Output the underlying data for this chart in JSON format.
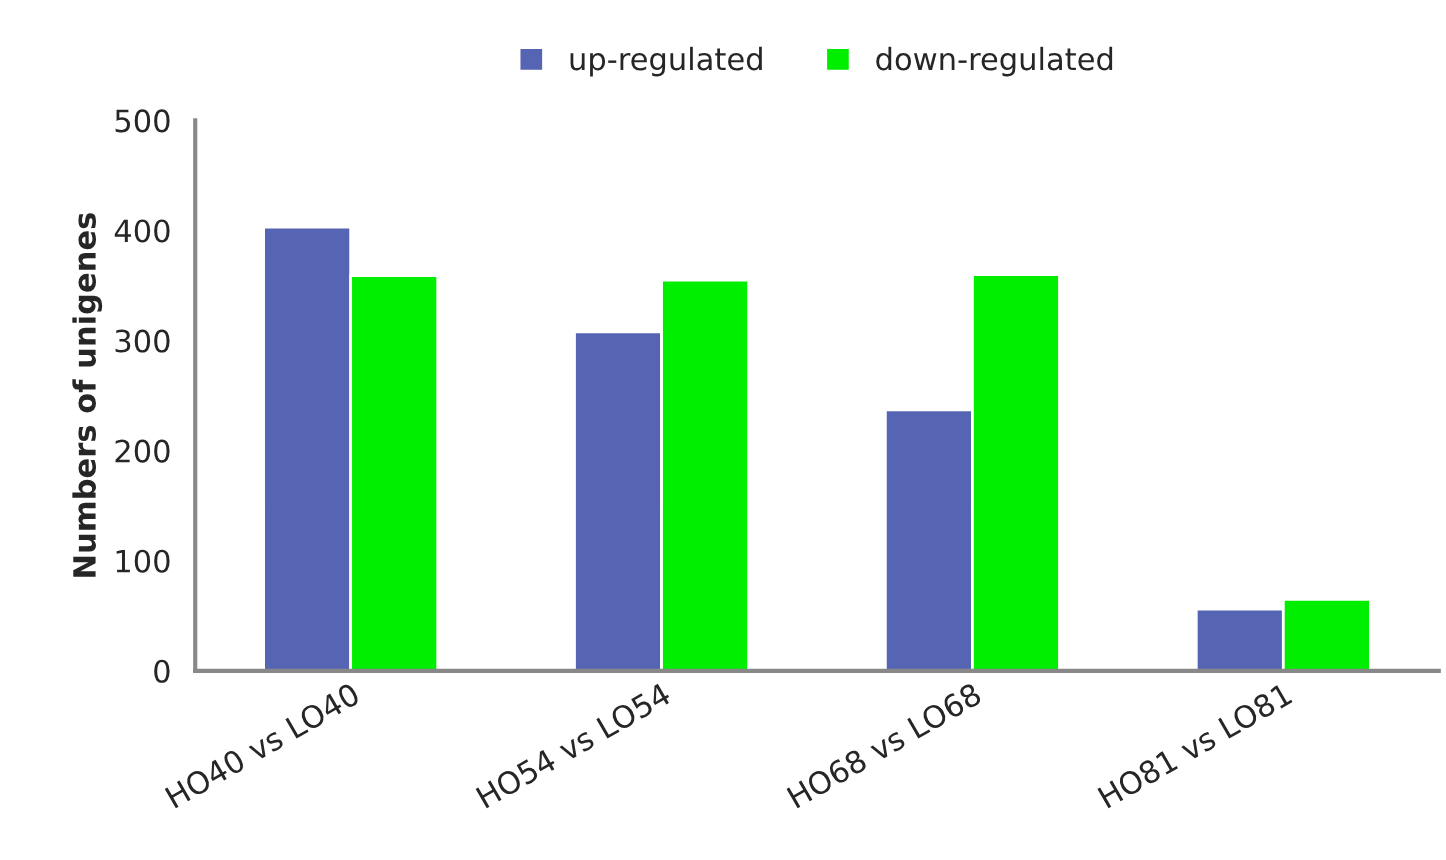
{
  "chart_data": {
    "type": "bar",
    "ylabel": "Numbers of unigenes",
    "categories": [
      "HO40 vs LO40",
      "HO54 vs LO54",
      "HO68 vs LO68",
      "HO81 vs LO81"
    ],
    "series": [
      {
        "name": "up-regulated",
        "color": "#5664b4",
        "values": [
          403,
          308,
          237,
          56
        ]
      },
      {
        "name": "down-regulated",
        "color": "#00ee00",
        "values": [
          359,
          355,
          360,
          65
        ]
      }
    ],
    "ylim": [
      0,
      500
    ],
    "yticks": [
      0,
      100,
      200,
      300,
      400,
      500
    ],
    "grid": false,
    "legend": "top"
  }
}
